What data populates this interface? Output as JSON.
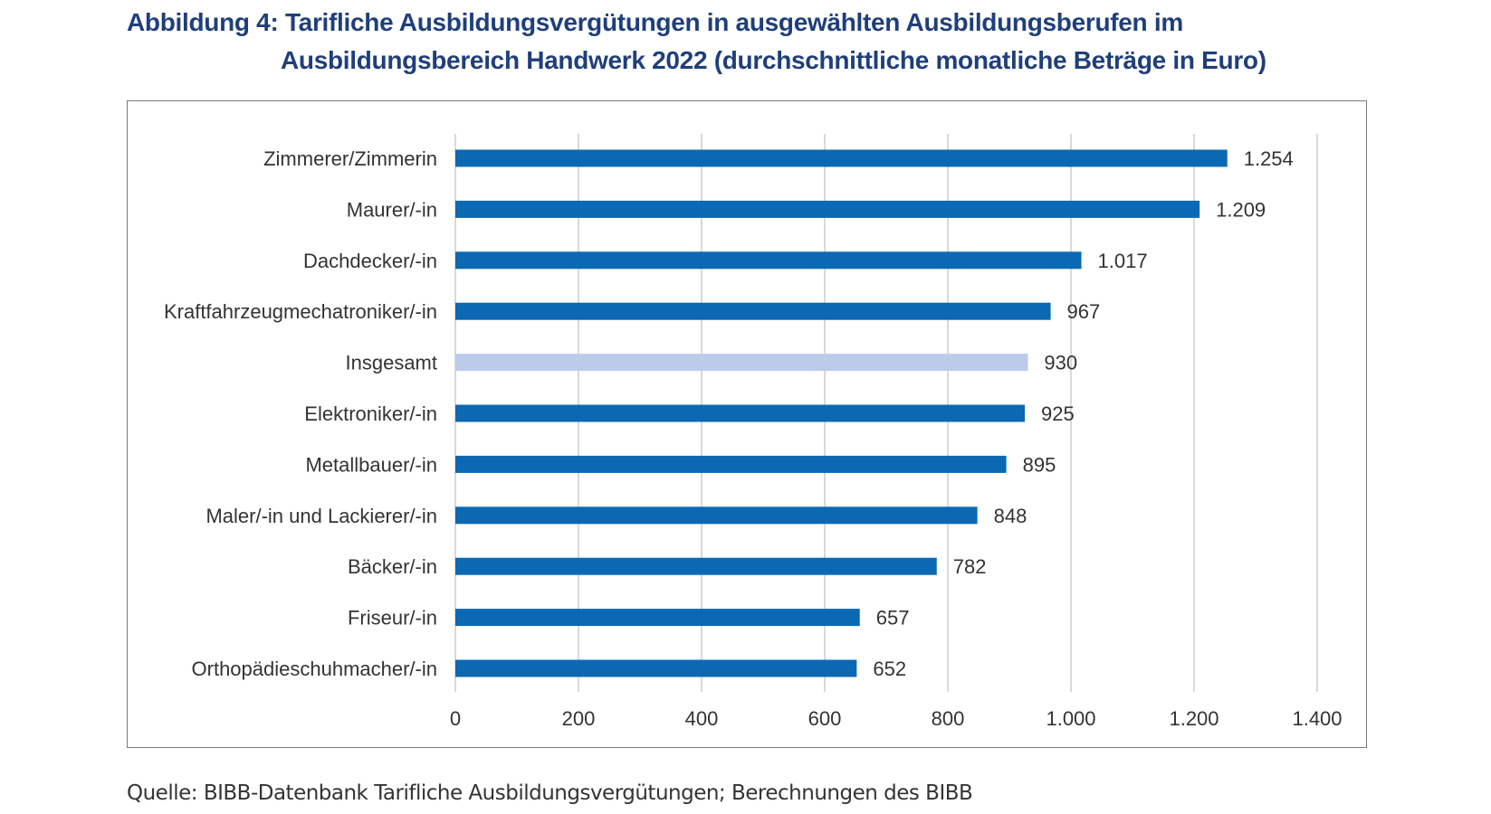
{
  "title_line1": "Abbildung 4: Tarifliche Ausbildungsvergütungen in ausgewählten Ausbildungsberufen im",
  "title_line2": "Ausbildungsbereich Handwerk 2022 (durchschnittliche monatliche Beträge in Euro)",
  "source": "Quelle: BIBB-Datenbank Tarifliche Ausbildungsvergütungen; Berechnungen des BIBB",
  "colors": {
    "bar": "#0b68b3",
    "highlight_bar": "#bccbea",
    "grid": "#d9d9d9",
    "title": "#1f3f7a"
  },
  "chart_data": {
    "type": "bar",
    "orientation": "horizontal",
    "categories": [
      "Zimmerer/Zimmerin",
      "Maurer/-in",
      "Dachdecker/-in",
      "Kraftfahrzeugmechatroniker/-in",
      "Insgesamt",
      "Elektroniker/-in",
      "Metallbauer/-in",
      "Maler/-in und Lackierer/-in",
      "Bäcker/-in",
      "Friseur/-in",
      "Orthopädieschuhmacher/-in"
    ],
    "values": [
      1254,
      1209,
      1017,
      967,
      930,
      925,
      895,
      848,
      782,
      657,
      652
    ],
    "value_labels": [
      "1.254",
      "1.209",
      "1.017",
      "967",
      "930",
      "925",
      "895",
      "848",
      "782",
      "657",
      "652"
    ],
    "highlight": "Insgesamt",
    "xlim": [
      0,
      1400
    ],
    "xticks": [
      0,
      200,
      400,
      600,
      800,
      1000,
      1200,
      1400
    ],
    "xtick_labels": [
      "0",
      "200",
      "400",
      "600",
      "800",
      "1.000",
      "1.200",
      "1.400"
    ],
    "grid": "vertical",
    "legend": "none"
  }
}
